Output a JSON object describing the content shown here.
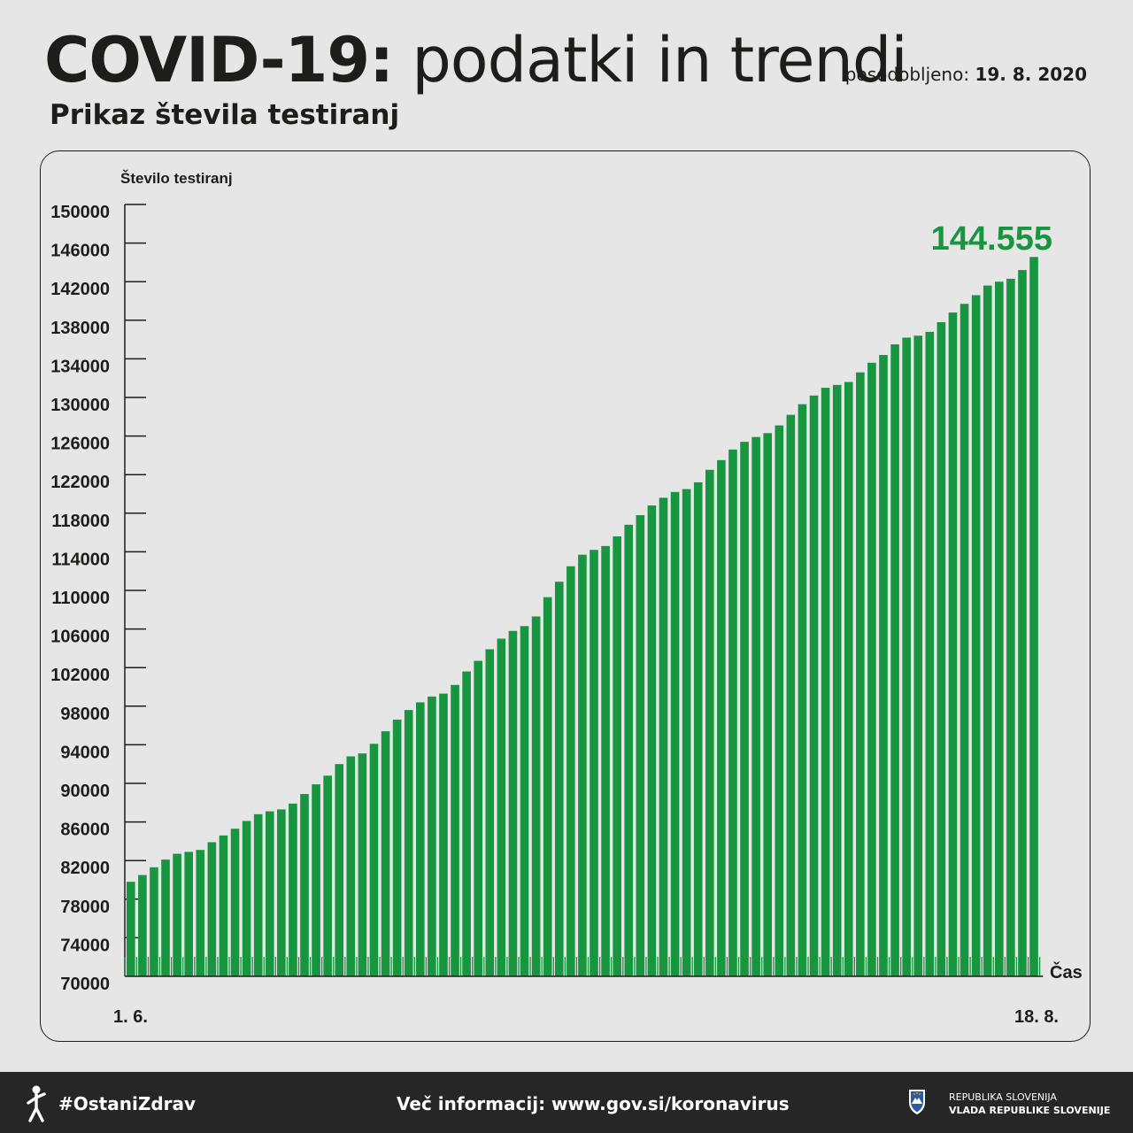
{
  "header": {
    "title_bold": "COVID-19:",
    "title_light": "podatki in trendi",
    "updated_label": "posodobljeno:",
    "updated_date": "19. 8. 2020",
    "subtitle": "Prikaz števila testiranj"
  },
  "colors": {
    "bar": "#18953f",
    "highlight": "#18953f",
    "background": "#e6e6e6",
    "footer": "#262626"
  },
  "chart_data": {
    "type": "bar",
    "ylabel": "Število testiranj",
    "xlabel": "Čas",
    "ylim": [
      70000,
      150000
    ],
    "yticks": [
      70000,
      74000,
      78000,
      82000,
      86000,
      90000,
      94000,
      98000,
      102000,
      106000,
      110000,
      114000,
      118000,
      122000,
      126000,
      130000,
      134000,
      138000,
      142000,
      146000,
      150000
    ],
    "x_start_label": "1. 6.",
    "x_end_label": "18. 8.",
    "highlight_label": "144.555",
    "series": [
      {
        "values": [
          79800,
          80500,
          81300,
          82100,
          82700,
          82900,
          83100,
          83900,
          84600,
          85300,
          86100,
          86800,
          87100,
          87300,
          87900,
          88900,
          89900,
          90800,
          92000,
          92800,
          93100,
          94100,
          95400,
          96600,
          97600,
          98400,
          99000,
          99300,
          100200,
          101600,
          102700,
          103900,
          105000,
          105800,
          106300,
          107300,
          109300,
          110900,
          112500,
          113700,
          114200,
          114600,
          115600,
          116800,
          117800,
          118800,
          119600,
          120200,
          120500,
          121200,
          122500,
          123500,
          124600,
          125400,
          125900,
          126300,
          127100,
          128200,
          129300,
          130200,
          131000,
          131300,
          131600,
          132600,
          133600,
          134400,
          135500,
          136200,
          136400,
          136800,
          137800,
          138800,
          139700,
          140600,
          141600,
          142000,
          142300,
          143200,
          144555
        ]
      }
    ]
  },
  "footer": {
    "hashtag": "#OstaniZdrav",
    "info": "Več informacij: www.gov.si/koronavirus",
    "gov_line1": "REPUBLIKA SLOVENIJA",
    "gov_line2": "VLADA REPUBLIKE SLOVENIJE"
  }
}
